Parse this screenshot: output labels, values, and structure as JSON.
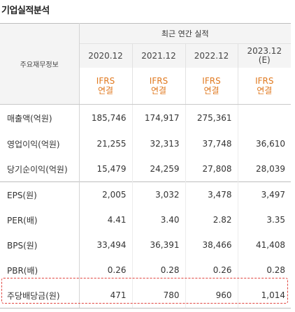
{
  "title": "기업실적분석",
  "table": {
    "row_header": "주요재무정보",
    "group_header": "최근 연간 실적",
    "periods": [
      "2020.12",
      "2021.12",
      "2022.12",
      "2023.12\n(E)"
    ],
    "period_line1": [
      "2020.12",
      "2021.12",
      "2022.12",
      "2023.12"
    ],
    "period_line2": [
      "",
      "",
      "",
      "(E)"
    ],
    "standards": [
      {
        "line1": "IFRS",
        "line2": "연결"
      },
      {
        "line1": "IFRS",
        "line2": "연결"
      },
      {
        "line1": "IFRS",
        "line2": "연결"
      },
      {
        "line1": "IFRS",
        "line2": "연결"
      }
    ],
    "rows": [
      {
        "label": "매출액(억원)",
        "values": [
          "185,746",
          "174,917",
          "275,361",
          ""
        ]
      },
      {
        "label": "영업이익(억원)",
        "values": [
          "21,255",
          "32,313",
          "37,748",
          "36,610"
        ]
      },
      {
        "label": "당기순이익(억원)",
        "values": [
          "15,479",
          "24,259",
          "27,808",
          "28,039"
        ]
      },
      {
        "label": "EPS(원)",
        "values": [
          "2,005",
          "3,032",
          "3,478",
          "3,497"
        ]
      },
      {
        "label": "PER(배)",
        "values": [
          "4.41",
          "3.40",
          "2.82",
          "3.35"
        ]
      },
      {
        "label": "BPS(원)",
        "values": [
          "33,494",
          "36,391",
          "38,466",
          "41,408"
        ]
      },
      {
        "label": "PBR(배)",
        "values": [
          "0.26",
          "0.28",
          "0.26",
          "0.28"
        ]
      },
      {
        "label": "주당배당금(원)",
        "values": [
          "471",
          "780",
          "960",
          "1,014"
        ]
      }
    ]
  },
  "colors": {
    "accent_orange": "#e0781e",
    "highlight_dashed_red": "#e0443e",
    "header_bg": "#f4f4f4"
  }
}
